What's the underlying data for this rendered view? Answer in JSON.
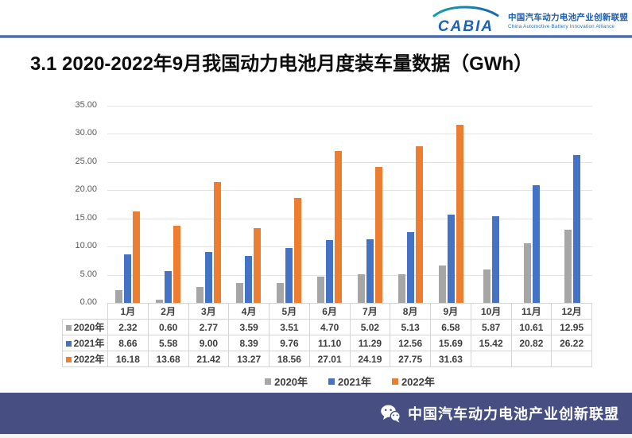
{
  "header": {
    "logo_text": "CABIA",
    "org_name_cn": "中国汽车动力电池产业创新联盟",
    "org_name_en": "China Automotive Battery Innovation Alliance"
  },
  "title": "3.1 2020-2022年9月我国动力电池月度装车量数据（GWh）",
  "chart_data": {
    "type": "bar",
    "title": "2020-2022年9月我国动力电池月度装车量数据（GWh）",
    "xlabel": "",
    "ylabel": "",
    "ylim": [
      0,
      35
    ],
    "ytick_step": 5,
    "grid": true,
    "legend_position": "bottom",
    "categories": [
      "1月",
      "2月",
      "3月",
      "4月",
      "5月",
      "6月",
      "7月",
      "8月",
      "9月",
      "10月",
      "11月",
      "12月"
    ],
    "series": [
      {
        "name": "2020年",
        "color": "#a6a6a6",
        "values": [
          2.32,
          0.6,
          2.77,
          3.59,
          3.51,
          4.7,
          5.02,
          5.13,
          6.58,
          5.87,
          10.61,
          12.95
        ]
      },
      {
        "name": "2021年",
        "color": "#4472c4",
        "values": [
          8.66,
          5.58,
          9.0,
          8.39,
          9.76,
          11.1,
          11.29,
          12.56,
          15.69,
          15.42,
          20.82,
          26.22
        ]
      },
      {
        "name": "2022年",
        "color": "#ed7d31",
        "values": [
          16.18,
          13.68,
          21.42,
          13.27,
          18.56,
          27.01,
          24.19,
          27.75,
          31.63,
          null,
          null,
          null
        ]
      }
    ]
  },
  "footer": {
    "org_name": "中国汽车动力电池产业创新联盟",
    "bg_color": "#474f82"
  }
}
